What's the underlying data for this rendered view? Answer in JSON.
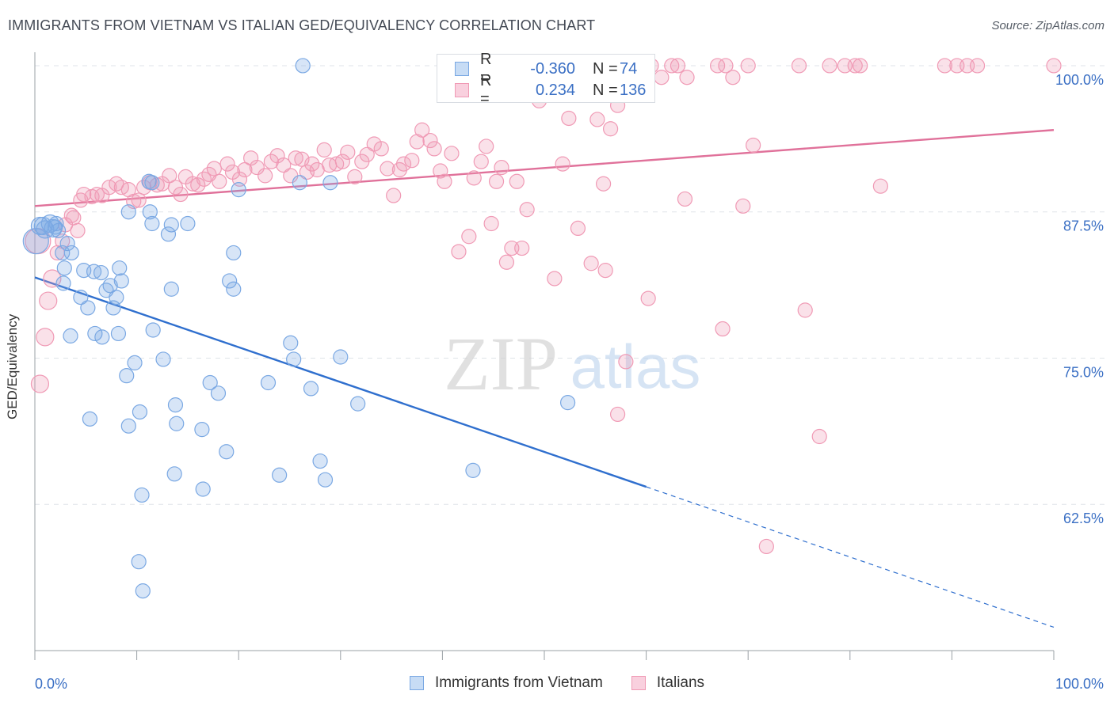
{
  "title": "IMMIGRANTS FROM VIETNAM VS ITALIAN GED/EQUIVALENCY CORRELATION CHART",
  "source": "Source: ZipAtlas.com",
  "watermark": {
    "zip": "ZIP",
    "atlas": "atlas"
  },
  "legend": {
    "r_label": "R =",
    "n_label": "N =",
    "rows": [
      {
        "name": "Immigrants from Vietnam",
        "r": "-0.360",
        "n": "74",
        "color": "#7aa8e3"
      },
      {
        "name": "Italians",
        "r": "0.234",
        "n": "136",
        "color": "#f09ab5"
      }
    ]
  },
  "chart_data": {
    "type": "scatter",
    "title": "IMMIGRANTS FROM VIETNAM VS ITALIAN GED/EQUIVALENCY CORRELATION CHART",
    "xlabel": "",
    "ylabel": "GED/Equivalency",
    "x_tick_labels": [
      "0.0%",
      "100.0%"
    ],
    "y_tick_labels": [
      "100.0%",
      "87.5%",
      "75.0%",
      "62.5%"
    ],
    "xlim": [
      0,
      100
    ],
    "ylim": [
      50,
      100.2
    ],
    "y_ticks": [
      100,
      87.5,
      75,
      62.5
    ],
    "grid": true,
    "legend_position": "top-center",
    "series": [
      {
        "name": "Immigrants from Vietnam",
        "color": "#7aa8e3",
        "line_color": "#2f6fce",
        "trend": {
          "x": [
            0,
            60
          ],
          "y": [
            81.9,
            64.0
          ],
          "dashed_to": {
            "x": 100,
            "y": 52.0
          }
        },
        "points": [
          [
            0.5,
            86.3
          ],
          [
            1.0,
            86.0
          ],
          [
            1.5,
            86.5
          ],
          [
            1.8,
            86.1
          ],
          [
            2.0,
            86.2
          ],
          [
            2.3,
            85.9
          ],
          [
            0.8,
            86.3
          ],
          [
            2.7,
            84.0
          ],
          [
            3.6,
            84.0
          ],
          [
            3.2,
            84.8
          ],
          [
            2.9,
            82.7
          ],
          [
            2.8,
            81.4
          ],
          [
            4.5,
            80.2
          ],
          [
            4.8,
            82.5
          ],
          [
            5.8,
            82.4
          ],
          [
            6.5,
            82.3
          ],
          [
            7.0,
            80.8
          ],
          [
            7.4,
            81.2
          ],
          [
            8.0,
            80.2
          ],
          [
            8.3,
            82.7
          ],
          [
            8.5,
            81.6
          ],
          [
            5.2,
            79.3
          ],
          [
            7.7,
            79.3
          ],
          [
            3.5,
            76.9
          ],
          [
            5.9,
            77.1
          ],
          [
            6.6,
            76.8
          ],
          [
            8.2,
            77.1
          ],
          [
            11.6,
            77.4
          ],
          [
            9.0,
            73.5
          ],
          [
            9.8,
            74.6
          ],
          [
            10.3,
            70.4
          ],
          [
            9.2,
            69.2
          ],
          [
            5.4,
            69.8
          ],
          [
            12.6,
            74.9
          ],
          [
            13.8,
            71.0
          ],
          [
            13.9,
            69.4
          ],
          [
            16.4,
            68.9
          ],
          [
            17.2,
            72.9
          ],
          [
            18.0,
            72.0
          ],
          [
            18.8,
            67.0
          ],
          [
            13.7,
            65.1
          ],
          [
            16.5,
            63.8
          ],
          [
            10.5,
            63.3
          ],
          [
            10.2,
            57.6
          ],
          [
            10.6,
            55.1
          ],
          [
            9.2,
            87.5
          ],
          [
            11.3,
            87.5
          ],
          [
            11.5,
            86.5
          ],
          [
            13.4,
            86.4
          ],
          [
            13.1,
            85.6
          ],
          [
            15.0,
            86.5
          ],
          [
            13.4,
            80.9
          ],
          [
            19.1,
            81.6
          ],
          [
            19.5,
            80.9
          ],
          [
            19.5,
            84.0
          ],
          [
            20.0,
            89.4
          ],
          [
            11.5,
            90.0
          ],
          [
            11.2,
            90.1
          ],
          [
            29.0,
            90.0
          ],
          [
            26.0,
            90.0
          ],
          [
            22.9,
            72.9
          ],
          [
            25.4,
            74.9
          ],
          [
            25.1,
            76.3
          ],
          [
            27.1,
            72.4
          ],
          [
            30.0,
            75.1
          ],
          [
            28.0,
            66.2
          ],
          [
            31.7,
            71.1
          ],
          [
            24.0,
            65.0
          ],
          [
            28.5,
            64.6
          ],
          [
            43.0,
            65.4
          ],
          [
            52.3,
            71.2
          ],
          [
            26.3,
            100.0
          ],
          [
            0.1,
            85.0
          ],
          [
            2.1,
            86.5
          ]
        ]
      },
      {
        "name": "Italians",
        "color": "#f09ab5",
        "line_color": "#e0719a",
        "trend": {
          "x": [
            0,
            100
          ],
          "y": [
            88.0,
            94.5
          ]
        },
        "points": [
          [
            0.5,
            72.8
          ],
          [
            1.0,
            76.8
          ],
          [
            1.3,
            79.9
          ],
          [
            1.7,
            81.8
          ],
          [
            2.2,
            84.0
          ],
          [
            2.7,
            85.0
          ],
          [
            3.0,
            86.4
          ],
          [
            3.8,
            87.0
          ],
          [
            4.2,
            85.9
          ],
          [
            4.5,
            88.5
          ],
          [
            4.8,
            89.0
          ],
          [
            5.6,
            88.8
          ],
          [
            6.1,
            89.0
          ],
          [
            6.6,
            88.9
          ],
          [
            7.3,
            89.6
          ],
          [
            8.0,
            89.9
          ],
          [
            8.5,
            89.6
          ],
          [
            9.2,
            89.4
          ],
          [
            9.7,
            88.4
          ],
          [
            10.2,
            88.5
          ],
          [
            10.7,
            89.6
          ],
          [
            11.3,
            90.0
          ],
          [
            12.0,
            89.8
          ],
          [
            12.5,
            89.9
          ],
          [
            13.2,
            90.6
          ],
          [
            13.8,
            89.6
          ],
          [
            14.3,
            89.0
          ],
          [
            14.8,
            90.5
          ],
          [
            15.5,
            89.9
          ],
          [
            16.0,
            89.8
          ],
          [
            16.6,
            90.3
          ],
          [
            17.1,
            90.7
          ],
          [
            17.6,
            91.2
          ],
          [
            18.1,
            90.1
          ],
          [
            18.9,
            91.6
          ],
          [
            19.4,
            90.9
          ],
          [
            20.1,
            90.3
          ],
          [
            20.6,
            91.1
          ],
          [
            21.2,
            92.1
          ],
          [
            21.8,
            91.3
          ],
          [
            22.6,
            90.6
          ],
          [
            23.2,
            91.8
          ],
          [
            23.8,
            92.3
          ],
          [
            24.4,
            91.5
          ],
          [
            25.1,
            90.6
          ],
          [
            25.6,
            92.1
          ],
          [
            26.2,
            92.0
          ],
          [
            26.7,
            90.9
          ],
          [
            27.2,
            91.6
          ],
          [
            27.7,
            91.1
          ],
          [
            28.4,
            92.8
          ],
          [
            28.9,
            91.5
          ],
          [
            29.6,
            91.6
          ],
          [
            30.2,
            91.8
          ],
          [
            30.7,
            92.6
          ],
          [
            31.4,
            90.5
          ],
          [
            32.1,
            91.8
          ],
          [
            32.6,
            92.4
          ],
          [
            33.3,
            93.3
          ],
          [
            34.0,
            92.9
          ],
          [
            34.6,
            91.2
          ],
          [
            35.2,
            88.9
          ],
          [
            35.8,
            91.1
          ],
          [
            36.2,
            91.6
          ],
          [
            37.0,
            91.9
          ],
          [
            37.5,
            93.5
          ],
          [
            38.0,
            94.5
          ],
          [
            38.8,
            93.6
          ],
          [
            39.2,
            92.9
          ],
          [
            39.8,
            91.0
          ],
          [
            40.2,
            90.1
          ],
          [
            40.9,
            92.5
          ],
          [
            41.6,
            84.1
          ],
          [
            42.6,
            85.4
          ],
          [
            43.1,
            90.4
          ],
          [
            43.8,
            91.8
          ],
          [
            44.3,
            93.1
          ],
          [
            44.8,
            86.5
          ],
          [
            45.3,
            90.1
          ],
          [
            45.8,
            91.3
          ],
          [
            46.3,
            83.2
          ],
          [
            46.8,
            84.4
          ],
          [
            47.3,
            90.1
          ],
          [
            47.8,
            84.4
          ],
          [
            48.3,
            87.7
          ],
          [
            48.7,
            100.0
          ],
          [
            49.5,
            97.0
          ],
          [
            50.2,
            99.3
          ],
          [
            51.0,
            81.8
          ],
          [
            51.8,
            91.6
          ],
          [
            52.4,
            95.5
          ],
          [
            53.3,
            86.1
          ],
          [
            54.0,
            99.2
          ],
          [
            54.6,
            83.1
          ],
          [
            55.2,
            95.4
          ],
          [
            55.8,
            89.9
          ],
          [
            56.5,
            94.6
          ],
          [
            57.2,
            96.6
          ],
          [
            57.8,
            98.1
          ],
          [
            58.7,
            100.0
          ],
          [
            59.5,
            100.0
          ],
          [
            60.5,
            100.0
          ],
          [
            61.5,
            99.0
          ],
          [
            62.5,
            100.0
          ],
          [
            63.1,
            100.0
          ],
          [
            64.0,
            99.0
          ],
          [
            56.0,
            82.5
          ],
          [
            58.0,
            74.7
          ],
          [
            57.2,
            70.2
          ],
          [
            58.5,
            100.0
          ],
          [
            60.2,
            80.1
          ],
          [
            63.8,
            88.6
          ],
          [
            67.0,
            100.0
          ],
          [
            67.8,
            100.0
          ],
          [
            68.5,
            99.0
          ],
          [
            70.0,
            100.0
          ],
          [
            67.5,
            77.5
          ],
          [
            69.5,
            88.0
          ],
          [
            70.5,
            93.2
          ],
          [
            75.0,
            100.0
          ],
          [
            75.6,
            79.1
          ],
          [
            78.0,
            100.0
          ],
          [
            79.5,
            100.0
          ],
          [
            80.5,
            100.0
          ],
          [
            81.0,
            100.0
          ],
          [
            83.0,
            89.7
          ],
          [
            77.0,
            68.3
          ],
          [
            89.3,
            100.0
          ],
          [
            90.5,
            100.0
          ],
          [
            91.5,
            100.0
          ],
          [
            92.5,
            100.0
          ],
          [
            100.0,
            100.0
          ],
          [
            71.8,
            58.9
          ],
          [
            0.3,
            85.0
          ],
          [
            3.6,
            87.2
          ]
        ]
      }
    ]
  }
}
